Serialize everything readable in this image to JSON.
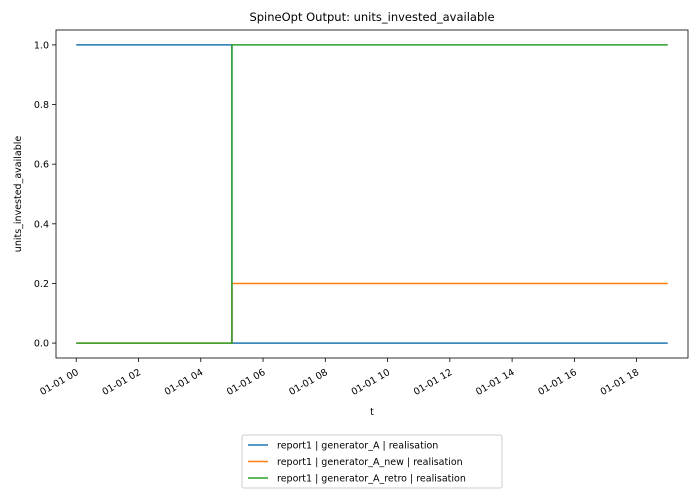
{
  "chart_data": {
    "type": "line",
    "title": "SpineOpt Output: units_invested_available",
    "xlabel": "t",
    "ylabel": "units_invested_available",
    "x_ticks": [
      "01-01 00",
      "01-01 02",
      "01-01 04",
      "01-01 06",
      "01-01 08",
      "01-01 10",
      "01-01 12",
      "01-01 14",
      "01-01 16",
      "01-01 18"
    ],
    "y_ticks": [
      "0.0",
      "0.2",
      "0.4",
      "0.6",
      "0.8",
      "1.0"
    ],
    "xlim_hours": [
      -0.65,
      19.65
    ],
    "ylim": [
      -0.05,
      1.05
    ],
    "grid": false,
    "legend_position": "below-center",
    "step": "post",
    "x_hours": [
      0,
      5,
      19
    ],
    "series": [
      {
        "name": "report1 | generator_A | realisation",
        "color": "#1f77b4",
        "values": [
          1.0,
          0.0,
          0.0
        ]
      },
      {
        "name": "report1 | generator_A_new | realisation",
        "color": "#ff7f0e",
        "values": [
          0.0,
          0.2,
          0.2
        ]
      },
      {
        "name": "report1 | generator_A_retro | realisation",
        "color": "#2ca02c",
        "values": [
          0.0,
          1.0,
          1.0
        ]
      }
    ]
  }
}
